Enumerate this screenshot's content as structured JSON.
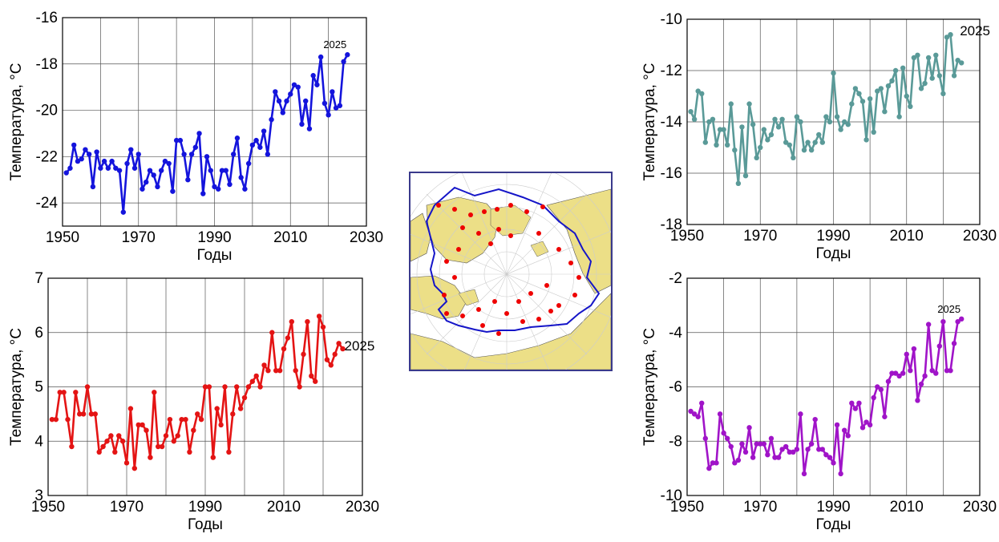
{
  "chart_data": [
    {
      "id": "tl",
      "type": "line",
      "color": "#1414dc",
      "xlabel": "Годы",
      "ylabel": "Температура, °С",
      "xlim": [
        1950,
        2030
      ],
      "ylim": [
        -25,
        -16
      ],
      "xticks": [
        1950,
        1970,
        1990,
        2010,
        2030
      ],
      "yticks": [
        -24,
        -22,
        -20,
        -18,
        -16
      ],
      "annotation": "2025",
      "series": [
        {
          "x_start": 1951,
          "values": [
            -22.7,
            -22.5,
            -21.5,
            -22.2,
            -22.1,
            -21.7,
            -21.9,
            -23.3,
            -21.8,
            -22.5,
            -22.2,
            -22.5,
            -22.2,
            -22.5,
            -22.6,
            -24.4,
            -22.3,
            -21.7,
            -22.5,
            -21.9,
            -23.4,
            -23.1,
            -22.6,
            -22.8,
            -23.3,
            -22.6,
            -22.2,
            -22.3,
            -23.5,
            -21.3,
            -21.3,
            -21.9,
            -23.0,
            -21.9,
            -21.6,
            -21.0,
            -23.6,
            -22.0,
            -22.6,
            -23.3,
            -23.4,
            -22.6,
            -22.6,
            -23.2,
            -21.9,
            -21.2,
            -22.9,
            -23.4,
            -22.3,
            -21.5,
            -21.3,
            -21.6,
            -20.9,
            -21.9,
            -20.4,
            -19.2,
            -19.6,
            -20.1,
            -19.6,
            -19.3,
            -18.9,
            -19.0,
            -20.6,
            -19.6,
            -20.8,
            -18.5,
            -18.9,
            -17.7,
            -19.7,
            -20.2,
            -19.2,
            -19.9,
            -19.8,
            -17.9,
            -17.6
          ]
        }
      ]
    },
    {
      "id": "bl",
      "type": "line",
      "color": "#e41414",
      "xlabel": "Годы",
      "ylabel": "Температура, °С",
      "xlim": [
        1950,
        2030
      ],
      "ylim": [
        3,
        7
      ],
      "xticks": [
        1950,
        1970,
        1990,
        2010,
        2030
      ],
      "yticks": [
        3,
        4,
        5,
        6,
        7
      ],
      "annotation": "2025",
      "series": [
        {
          "x_start": 1951,
          "values": [
            4.4,
            4.4,
            4.9,
            4.9,
            4.4,
            3.9,
            4.9,
            4.5,
            4.5,
            5.0,
            4.5,
            4.5,
            3.8,
            3.9,
            4.0,
            4.1,
            3.8,
            4.1,
            4.0,
            3.6,
            4.6,
            3.5,
            4.3,
            4.3,
            4.2,
            3.7,
            4.9,
            3.9,
            3.9,
            4.1,
            4.4,
            4.0,
            4.1,
            4.4,
            4.4,
            3.8,
            4.2,
            4.5,
            4.4,
            5.0,
            5.0,
            3.7,
            4.6,
            4.3,
            5.0,
            3.8,
            4.5,
            5.0,
            4.6,
            4.8,
            5.0,
            5.1,
            5.2,
            5.0,
            5.4,
            5.3,
            6.0,
            5.3,
            5.3,
            5.7,
            5.9,
            6.2,
            5.3,
            5.0,
            5.6,
            6.2,
            5.2,
            5.1,
            6.3,
            6.1,
            5.5,
            5.4,
            5.6,
            5.8,
            5.7
          ]
        }
      ]
    },
    {
      "id": "tr",
      "type": "line",
      "color": "#5a9a98",
      "xlabel": "Годы",
      "ylabel": "Температура, °С",
      "xlim": [
        1950,
        2030
      ],
      "ylim": [
        -18,
        -10
      ],
      "xticks": [
        1950,
        1970,
        1990,
        2010,
        2030
      ],
      "yticks": [
        -18,
        -16,
        -14,
        -12,
        -10
      ],
      "annotation": "2025",
      "series": [
        {
          "x_start": 1951,
          "values": [
            -13.6,
            -13.9,
            -12.8,
            -12.9,
            -14.8,
            -14.0,
            -13.9,
            -14.9,
            -14.3,
            -14.3,
            -14.9,
            -13.3,
            -15.1,
            -16.4,
            -14.2,
            -16.1,
            -13.3,
            -14.1,
            -15.4,
            -15.0,
            -14.3,
            -14.7,
            -14.5,
            -13.9,
            -14.2,
            -13.9,
            -14.8,
            -14.9,
            -15.4,
            -13.8,
            -14.0,
            -15.1,
            -14.8,
            -15.1,
            -14.8,
            -14.5,
            -14.8,
            -13.8,
            -14.0,
            -12.1,
            -13.8,
            -14.3,
            -14.0,
            -14.1,
            -13.3,
            -12.7,
            -12.9,
            -13.2,
            -14.7,
            -13.1,
            -14.4,
            -12.8,
            -12.7,
            -13.6,
            -12.6,
            -12.4,
            -12.0,
            -13.8,
            -11.9,
            -13.0,
            -13.4,
            -11.5,
            -11.4,
            -12.7,
            -12.5,
            -11.5,
            -12.3,
            -11.4,
            -12.2,
            -12.9,
            -10.7,
            -10.6,
            -12.2,
            -11.6,
            -11.7
          ]
        }
      ]
    },
    {
      "id": "br",
      "type": "line",
      "color": "#a014c8",
      "xlabel": "Годы",
      "ylabel": "Температура, °С",
      "xlim": [
        1950,
        2030
      ],
      "ylim": [
        -10,
        -2
      ],
      "xticks": [
        1950,
        1970,
        1990,
        2010,
        2030
      ],
      "yticks": [
        -10,
        -8,
        -6,
        -4,
        -2
      ],
      "annotation": "2025",
      "series": [
        {
          "x_start": 1951,
          "values": [
            -6.9,
            -7.0,
            -7.1,
            -6.6,
            -7.9,
            -9.0,
            -8.8,
            -8.8,
            -7.0,
            -7.7,
            -7.9,
            -8.2,
            -8.8,
            -8.7,
            -8.1,
            -8.4,
            -7.5,
            -8.6,
            -8.1,
            -8.1,
            -8.1,
            -8.5,
            -7.9,
            -8.6,
            -8.6,
            -8.3,
            -8.2,
            -8.4,
            -8.4,
            -8.3,
            -7.0,
            -9.2,
            -8.3,
            -8.1,
            -7.2,
            -8.3,
            -8.3,
            -8.5,
            -8.6,
            -8.8,
            -7.4,
            -9.2,
            -7.6,
            -7.8,
            -6.6,
            -6.8,
            -6.6,
            -7.5,
            -7.3,
            -7.4,
            -6.4,
            -6.0,
            -6.1,
            -7.1,
            -5.8,
            -5.5,
            -5.5,
            -5.6,
            -5.5,
            -4.8,
            -5.4,
            -4.6,
            -6.5,
            -5.9,
            -5.6,
            -3.7,
            -5.4,
            -5.5,
            -4.5,
            -3.6,
            -5.4,
            -5.4,
            -4.4,
            -3.6,
            -3.5
          ]
        }
      ]
    }
  ],
  "map": {
    "land_color": "#ecdf87",
    "water_color": "#ffffff",
    "boundary_color": "#1515c8",
    "station_color": "#ee0000"
  }
}
